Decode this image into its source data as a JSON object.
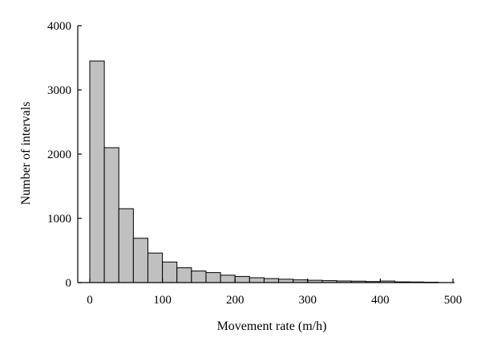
{
  "chart_data": {
    "type": "bar",
    "xlabel": "Movement rate (m/h)",
    "ylabel": "Number of intervals",
    "xlim": [
      -10,
      500
    ],
    "ylim": [
      0,
      4000
    ],
    "x_ticks": [
      0,
      100,
      200,
      300,
      400,
      500
    ],
    "x_tick_labels": [
      "0",
      "100",
      "200",
      "300",
      "400",
      "500"
    ],
    "y_ticks": [
      0,
      1000,
      2000,
      3000,
      4000
    ],
    "y_tick_labels": [
      "0",
      "1000",
      "2000",
      "3000",
      "4000"
    ],
    "bin_width": 20,
    "bins": [
      {
        "x_start": 0,
        "x_end": 20,
        "value": 3450
      },
      {
        "x_start": 20,
        "x_end": 40,
        "value": 2100
      },
      {
        "x_start": 40,
        "x_end": 60,
        "value": 1150
      },
      {
        "x_start": 60,
        "x_end": 80,
        "value": 690
      },
      {
        "x_start": 80,
        "x_end": 100,
        "value": 460
      },
      {
        "x_start": 100,
        "x_end": 120,
        "value": 320
      },
      {
        "x_start": 120,
        "x_end": 140,
        "value": 230
      },
      {
        "x_start": 140,
        "x_end": 160,
        "value": 180
      },
      {
        "x_start": 160,
        "x_end": 180,
        "value": 155
      },
      {
        "x_start": 180,
        "x_end": 200,
        "value": 115
      },
      {
        "x_start": 200,
        "x_end": 220,
        "value": 95
      },
      {
        "x_start": 220,
        "x_end": 240,
        "value": 75
      },
      {
        "x_start": 240,
        "x_end": 260,
        "value": 62
      },
      {
        "x_start": 260,
        "x_end": 280,
        "value": 52
      },
      {
        "x_start": 280,
        "x_end": 300,
        "value": 42
      },
      {
        "x_start": 300,
        "x_end": 320,
        "value": 36
      },
      {
        "x_start": 320,
        "x_end": 340,
        "value": 30
      },
      {
        "x_start": 340,
        "x_end": 360,
        "value": 25
      },
      {
        "x_start": 360,
        "x_end": 380,
        "value": 22
      },
      {
        "x_start": 380,
        "x_end": 400,
        "value": 16
      },
      {
        "x_start": 400,
        "x_end": 420,
        "value": 24
      },
      {
        "x_start": 420,
        "x_end": 440,
        "value": 11
      },
      {
        "x_start": 440,
        "x_end": 460,
        "value": 9
      },
      {
        "x_start": 460,
        "x_end": 480,
        "value": 5
      }
    ],
    "grid": false,
    "colors": {
      "bar_fill": "#c0c0c0",
      "bar_stroke": "#000000",
      "axis": "#000000"
    }
  }
}
